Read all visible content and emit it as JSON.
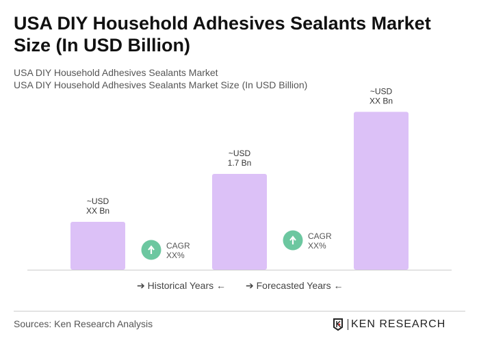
{
  "title": "USA DIY Household Adhesives Sealants Market Size (In USD Billion)",
  "subtitle1": "USA DIY Household Adhesives Sealants Market",
  "subtitle2": "USA DIY Household Adhesives Sealants Market Size (In USD Billion)",
  "chart_data": {
    "type": "bar",
    "categories": [
      "",
      "",
      ""
    ],
    "values": [
      0.85,
      1.7,
      2.8
    ],
    "data_labels": [
      [
        "~USD",
        "XX Bn"
      ],
      [
        "~USD",
        "1.7 Bn"
      ],
      [
        "~USD",
        "XX Bn"
      ]
    ],
    "bar_color": "#dcc1f7",
    "cagr": [
      {
        "line1": "CAGR",
        "line2": "XX%"
      },
      {
        "line1": "CAGR",
        "line2": "XX%"
      }
    ],
    "cagr_icon": "arrow-up-icon",
    "cagr_color": "#6cc7a0",
    "grid": false
  },
  "legend": {
    "historical": "Historical Years",
    "forecasted": "Forecasted Years"
  },
  "sources": "Sources: Ken Research Analysis",
  "logo_text": "KEN RESEARCH"
}
